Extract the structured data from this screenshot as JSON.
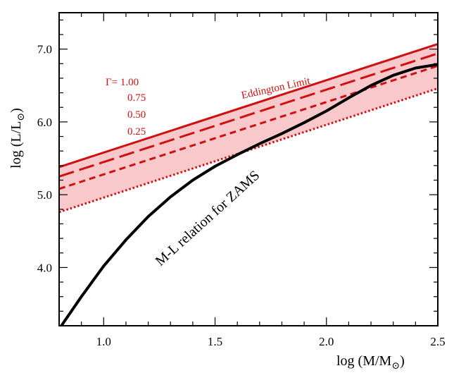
{
  "chart_data": {
    "type": "line",
    "title": "",
    "xlabel": "log (M/M",
    "xlabel_sub": "⊙",
    "xlabel_close": ")",
    "ylabel": "log (L/L",
    "ylabel_sub": "⊙",
    "ylabel_close": ")",
    "xlim": [
      0.8,
      2.5
    ],
    "ylim": [
      3.2,
      7.5
    ],
    "x_ticks": [
      1.0,
      1.5,
      2.0,
      2.5
    ],
    "x_tick_labels": [
      "1.0",
      "1.5",
      "2.0",
      "2.5"
    ],
    "y_ticks": [
      4.0,
      5.0,
      6.0,
      7.0
    ],
    "y_tick_labels": [
      "4.0",
      "5.0",
      "6.0",
      "7.0"
    ],
    "grid": false,
    "legend": {
      "placement": "top-left",
      "gamma_prefix": "Γ= 1.00",
      "entries": [
        "0.75",
        "0.50",
        "0.25"
      ]
    },
    "annotations": {
      "eddington": "Eddington Limit",
      "ml_relation": "M-L relation for ZAMS"
    },
    "colors": {
      "red": "#d01010",
      "band": "#f9c8ca",
      "black": "#000000"
    },
    "series": [
      {
        "name": "Γ = 1.00",
        "style": "solid",
        "color": "#d01010",
        "x": [
          0.8,
          2.5
        ],
        "y": [
          5.38,
          7.07
        ]
      },
      {
        "name": "Γ = 0.75",
        "style": "long-dash",
        "color": "#d01010",
        "x": [
          0.8,
          2.5
        ],
        "y": [
          5.25,
          6.94
        ]
      },
      {
        "name": "Γ = 0.50",
        "style": "short-dash",
        "color": "#d01010",
        "x": [
          0.8,
          2.5
        ],
        "y": [
          5.08,
          6.77
        ]
      },
      {
        "name": "Γ = 0.25",
        "style": "dotted",
        "color": "#d01010",
        "x": [
          0.8,
          2.5
        ],
        "y": [
          4.76,
          6.46
        ]
      },
      {
        "name": "M-L relation for ZAMS",
        "style": "solid",
        "color": "#000000",
        "x": [
          0.81,
          0.9,
          1.0,
          1.1,
          1.2,
          1.3,
          1.4,
          1.5,
          1.6,
          1.7,
          1.8,
          1.9,
          2.0,
          2.1,
          2.2,
          2.3,
          2.4,
          2.5
        ],
        "y": [
          3.2,
          3.6,
          4.02,
          4.38,
          4.7,
          4.97,
          5.2,
          5.39,
          5.55,
          5.7,
          5.84,
          5.99,
          6.15,
          6.33,
          6.5,
          6.64,
          6.74,
          6.79
        ]
      }
    ]
  }
}
